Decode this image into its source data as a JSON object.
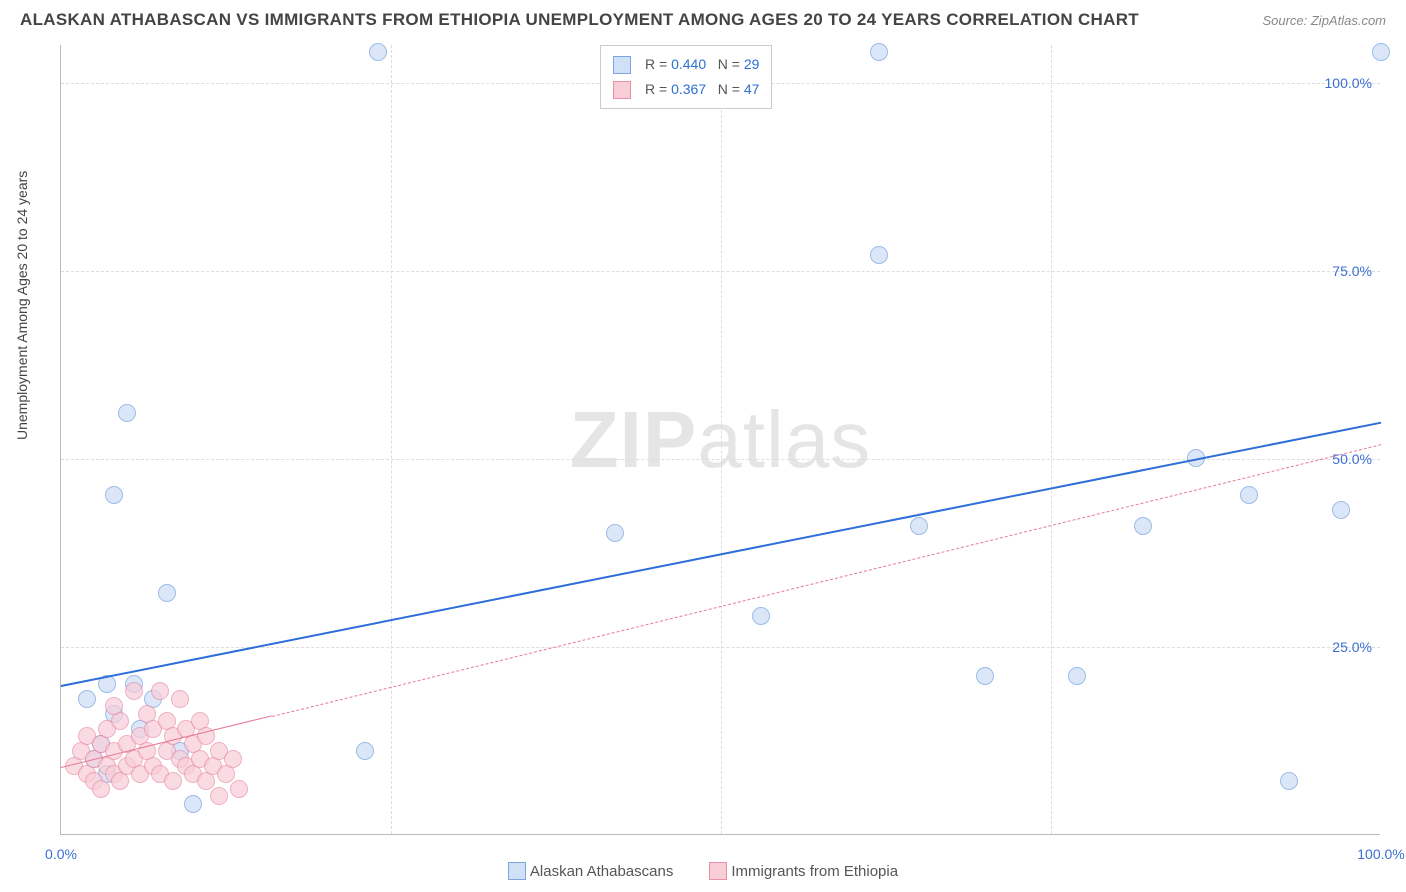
{
  "title": "ALASKAN ATHABASCAN VS IMMIGRANTS FROM ETHIOPIA UNEMPLOYMENT AMONG AGES 20 TO 24 YEARS CORRELATION CHART",
  "source": "Source: ZipAtlas.com",
  "ylabel": "Unemployment Among Ages 20 to 24 years",
  "watermark_bold": "ZIP",
  "watermark_rest": "atlas",
  "chart": {
    "type": "scatter",
    "xlim": [
      0,
      100
    ],
    "ylim": [
      0,
      105
    ],
    "xticks": [
      {
        "pos": 0,
        "label": "0.0%"
      },
      {
        "pos": 100,
        "label": "100.0%"
      }
    ],
    "yticks": [
      {
        "pos": 25,
        "label": "25.0%"
      },
      {
        "pos": 50,
        "label": "50.0%"
      },
      {
        "pos": 75,
        "label": "75.0%"
      },
      {
        "pos": 100,
        "label": "100.0%"
      }
    ],
    "xgrid_minor": [
      25,
      50,
      75
    ],
    "background_color": "#ffffff",
    "grid_color": "#dddddd",
    "axis_color": "#bbbbbb",
    "tick_color": "#3b6fd4"
  },
  "series": [
    {
      "name": "Alaskan Athabascans",
      "fill": "#cfe0f7",
      "stroke": "#7ba6e0",
      "marker_radius": 9,
      "fill_opacity": 0.75,
      "trend": {
        "x1": 0,
        "y1": 20,
        "x2": 100,
        "y2": 55,
        "color": "#2d6fd6",
        "width": 2.5,
        "dash": "solid",
        "solid_until_x": 100
      },
      "r_label_prefix": "R = ",
      "r_value": "0.440",
      "n_label_prefix": "   N = ",
      "n_value": "29",
      "points": [
        [
          24,
          104
        ],
        [
          62,
          104
        ],
        [
          100,
          104
        ],
        [
          3.5,
          20
        ],
        [
          3.5,
          8
        ],
        [
          4,
          45
        ],
        [
          5,
          56
        ],
        [
          6,
          14
        ],
        [
          7,
          18
        ],
        [
          8,
          32
        ],
        [
          9,
          11
        ],
        [
          10,
          4
        ],
        [
          23,
          11
        ],
        [
          42,
          40
        ],
        [
          53,
          29
        ],
        [
          65,
          41
        ],
        [
          70,
          21
        ],
        [
          77,
          21
        ],
        [
          82,
          41
        ],
        [
          86,
          50
        ],
        [
          90,
          45
        ],
        [
          93,
          7
        ],
        [
          97,
          43
        ],
        [
          62,
          77
        ],
        [
          3,
          12
        ],
        [
          2,
          18
        ],
        [
          2.5,
          10
        ],
        [
          4,
          16
        ],
        [
          5.5,
          20
        ]
      ]
    },
    {
      "name": "Immigrants from Ethiopia",
      "fill": "#f8cdd8",
      "stroke": "#e890a8",
      "marker_radius": 9,
      "fill_opacity": 0.7,
      "trend": {
        "x1": 0,
        "y1": 9,
        "x2": 100,
        "y2": 52,
        "color": "#e77a95",
        "width": 1.5,
        "dash": "dashed",
        "solid_until_x": 16
      },
      "r_label_prefix": "R = ",
      "r_value": "0.367",
      "n_label_prefix": "   N = ",
      "n_value": "47",
      "points": [
        [
          1,
          9
        ],
        [
          1.5,
          11
        ],
        [
          2,
          8
        ],
        [
          2,
          13
        ],
        [
          2.5,
          7
        ],
        [
          2.5,
          10
        ],
        [
          3,
          12
        ],
        [
          3,
          6
        ],
        [
          3.5,
          14
        ],
        [
          3.5,
          9
        ],
        [
          4,
          11
        ],
        [
          4,
          8
        ],
        [
          4.5,
          15
        ],
        [
          4.5,
          7
        ],
        [
          5,
          12
        ],
        [
          5,
          9
        ],
        [
          5.5,
          19
        ],
        [
          5.5,
          10
        ],
        [
          6,
          13
        ],
        [
          6,
          8
        ],
        [
          6.5,
          11
        ],
        [
          6.5,
          16
        ],
        [
          7,
          9
        ],
        [
          7,
          14
        ],
        [
          7.5,
          19
        ],
        [
          7.5,
          8
        ],
        [
          8,
          11
        ],
        [
          8,
          15
        ],
        [
          8.5,
          7
        ],
        [
          8.5,
          13
        ],
        [
          9,
          10
        ],
        [
          9,
          18
        ],
        [
          9.5,
          9
        ],
        [
          9.5,
          14
        ],
        [
          10,
          12
        ],
        [
          10,
          8
        ],
        [
          10.5,
          15
        ],
        [
          10.5,
          10
        ],
        [
          11,
          7
        ],
        [
          11,
          13
        ],
        [
          11.5,
          9
        ],
        [
          12,
          5
        ],
        [
          12,
          11
        ],
        [
          12.5,
          8
        ],
        [
          13,
          10
        ],
        [
          13.5,
          6
        ],
        [
          4,
          17
        ]
      ]
    }
  ]
}
